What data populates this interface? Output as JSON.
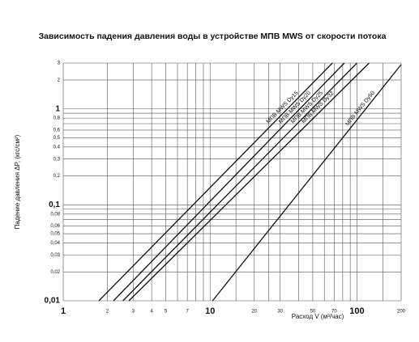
{
  "chart_data": {
    "type": "line",
    "title": "Зависимость падения давления воды в устройстве МПВ MWS от скорости потока",
    "y_label": "Падение давления ΔP, (кгс/см²)",
    "x_label": "Расход  V (м³/час)",
    "log_x": true,
    "log_y": true,
    "grid": true,
    "xlim": [
      1,
      200
    ],
    "ylim": [
      0.01,
      3
    ],
    "xticks": [
      1,
      2,
      3,
      4,
      5,
      7,
      10,
      20,
      30,
      50,
      70,
      100,
      200
    ],
    "yticks": [
      3,
      2,
      1,
      {
        "value": 0.8,
        "label": "0,8"
      },
      {
        "value": 0.6,
        "label": "0,6"
      },
      {
        "value": 0.5,
        "label": "0,5"
      },
      {
        "value": 0.4,
        "label": "0,4"
      },
      {
        "value": 0.3,
        "label": "0,3"
      },
      {
        "value": 0.2,
        "label": "0,2"
      },
      {
        "value": 0.1,
        "label": "0,1"
      },
      {
        "value": 0.08,
        "label": "0,08"
      },
      {
        "value": 0.06,
        "label": "0,06"
      },
      {
        "value": 0.05,
        "label": "0,05"
      },
      {
        "value": 0.04,
        "label": "0,04"
      },
      {
        "value": 0.03,
        "label": "0,03"
      },
      {
        "value": 0.02,
        "label": "0,02"
      },
      {
        "value": 0.01,
        "label": "0,01"
      }
    ],
    "xgrid": [
      6,
      8,
      9,
      15,
      25,
      40,
      60,
      80,
      90,
      150
    ],
    "ygrid": [
      0.9,
      0.7,
      0.09,
      0.07
    ],
    "color": "#111",
    "series": [
      {
        "name": "МПВ MWS Dy15",
        "x": [
          1.75,
          68
        ],
        "values": [
          0.01,
          3
        ]
      },
      {
        "name": "МПВ MWS Dy20",
        "x": [
          2.2,
          82
        ],
        "values": [
          0.01,
          3
        ]
      },
      {
        "name": "МПВ MWS Dy25",
        "x": [
          2.55,
          100
        ],
        "values": [
          0.01,
          3
        ]
      },
      {
        "name": "МПВ MWS Dy32",
        "x": [
          2.8,
          121
        ],
        "values": [
          0.01,
          3
        ]
      },
      {
        "name": "МПВ MWS Dy50",
        "x": [
          10.4,
          200
        ],
        "values": [
          0.01,
          2.9
        ]
      }
    ]
  }
}
